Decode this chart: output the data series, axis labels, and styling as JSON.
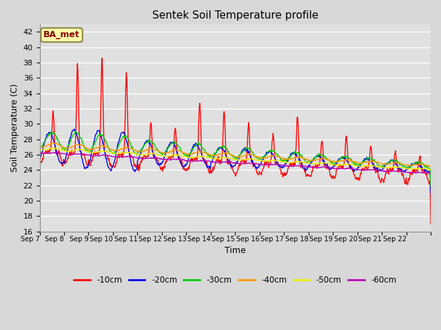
{
  "title": "Sentek Soil Temperature profile",
  "xlabel": "Time",
  "ylabel": "Soil Temperature (C)",
  "ylim": [
    16,
    43
  ],
  "yticks": [
    16,
    18,
    20,
    22,
    24,
    26,
    28,
    30,
    32,
    34,
    36,
    38,
    40,
    42
  ],
  "legend_label": "BA_met",
  "fig_bg_color": "#d8d8d8",
  "plot_bg_color": "#e0e0e0",
  "grid_color": "#ffffff",
  "colors": {
    "-10cm": "#ff0000",
    "-20cm": "#0000ee",
    "-30cm": "#00cc00",
    "-40cm": "#ff9900",
    "-50cm": "#eeee00",
    "-60cm": "#bb00bb"
  },
  "x_labels": [
    "Sep 7",
    "Sep 8",
    "Sep 9",
    "Sep 10",
    "Sep 11",
    "Sep 12",
    "Sep 13",
    "Sep 14",
    "Sep 15",
    "Sep 16",
    "Sep 17",
    "Sep 18",
    "Sep 19",
    "Sep 20",
    "Sep 21",
    "Sep 22"
  ],
  "days": 16
}
